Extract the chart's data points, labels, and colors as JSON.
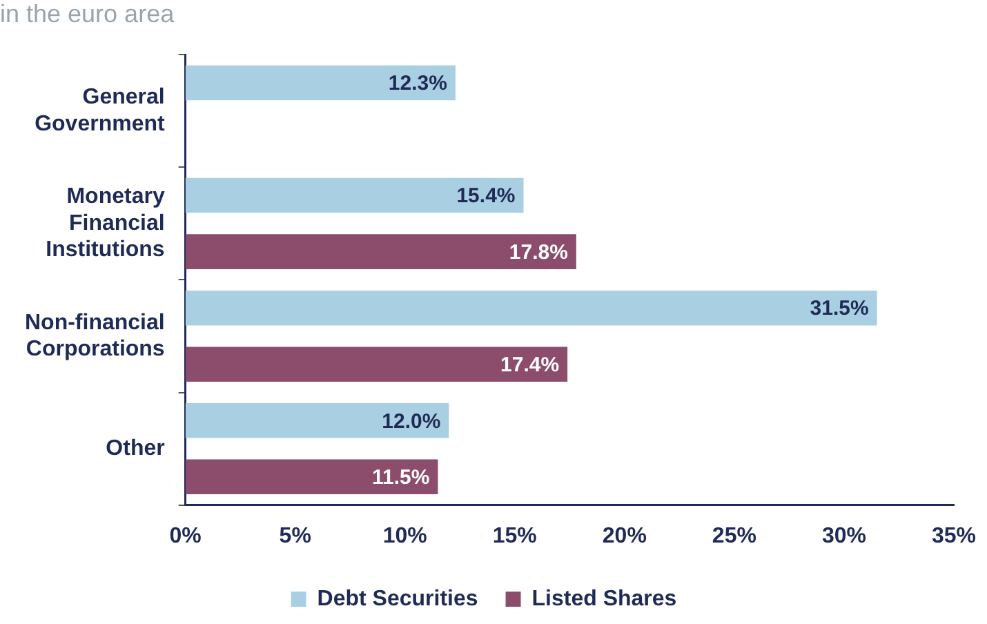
{
  "chart_data": {
    "type": "bar",
    "orientation": "horizontal",
    "title": "in the euro area",
    "categories": [
      "General Government",
      "Monetary Financial Institutions",
      "Non-financial Corporations",
      "Other"
    ],
    "series": [
      {
        "name": "Debt Securities",
        "color": "#a9cfe3",
        "values": [
          12.3,
          15.4,
          31.5,
          12.0
        ],
        "value_labels": [
          "12.3%",
          "15.4%",
          "31.5%",
          "12.0%"
        ]
      },
      {
        "name": "Listed Shares",
        "color": "#8c4d6c",
        "values": [
          null,
          17.8,
          17.4,
          11.5
        ],
        "value_labels": [
          null,
          "17.8%",
          "17.4%",
          "11.5%"
        ]
      }
    ],
    "xlim": [
      0,
      35
    ],
    "xticks": [
      {
        "value": 0,
        "label": "0%"
      },
      {
        "value": 5,
        "label": "5%"
      },
      {
        "value": 10,
        "label": "10%"
      },
      {
        "value": 15,
        "label": "15%"
      },
      {
        "value": 20,
        "label": "20%"
      },
      {
        "value": 25,
        "label": "25%"
      },
      {
        "value": 30,
        "label": "30%"
      },
      {
        "value": 35,
        "label": "35%"
      }
    ],
    "grid": false,
    "legend": "bottom"
  }
}
